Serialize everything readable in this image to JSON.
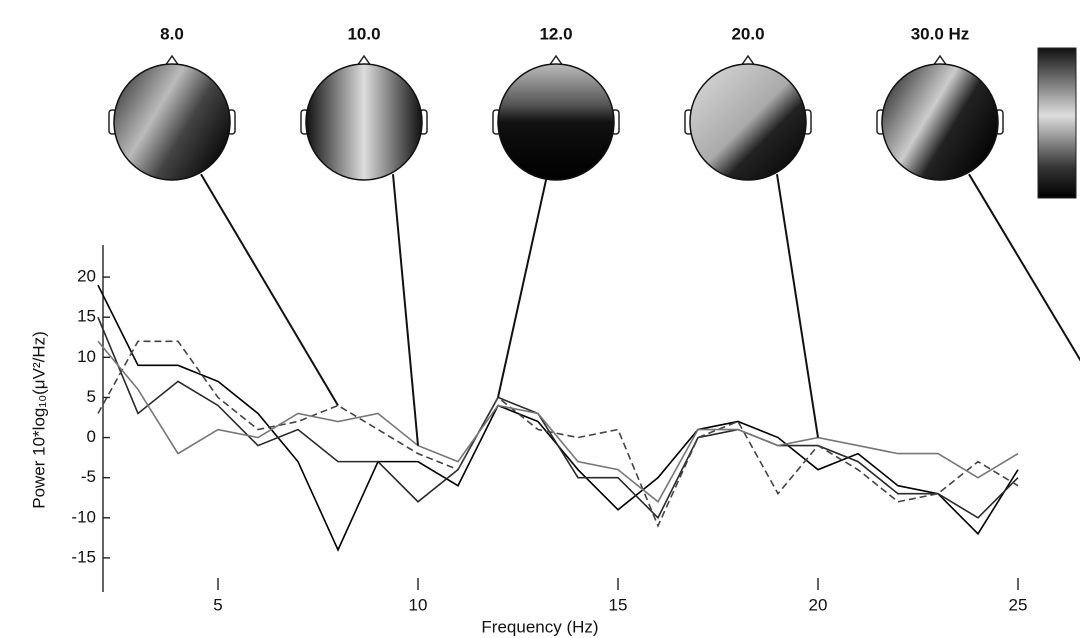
{
  "chart_data": {
    "type": "line",
    "x_label": "Frequency (Hz)",
    "y_label": "Power 10*log₁₀(μV²/Hz)",
    "x": [
      2,
      3,
      4,
      5,
      6,
      7,
      8,
      9,
      10,
      11,
      12,
      13,
      14,
      15,
      16,
      17,
      18,
      19,
      20,
      21,
      22,
      23,
      24,
      25
    ],
    "series": [
      {
        "color": "#000000",
        "style": "solid",
        "values": [
          19,
          9,
          9,
          7,
          3,
          -3,
          -14,
          -3,
          -3,
          -6,
          4,
          2,
          -4,
          -9,
          -5,
          1,
          2,
          0,
          -4,
          -2,
          -6,
          -7,
          -12,
          -4
        ]
      },
      {
        "color": "#2a2a2a",
        "style": "solid",
        "values": [
          15,
          3,
          7,
          4,
          -1,
          1,
          -3,
          -3,
          -8,
          -4,
          5,
          3,
          -5,
          -5,
          -10,
          0,
          1,
          -1,
          -1,
          -3,
          -7,
          -7,
          -10,
          -5
        ]
      },
      {
        "color": "#444444",
        "style": "dashed",
        "values": [
          3,
          12,
          12,
          5,
          1,
          2,
          4,
          1,
          -2,
          -4,
          5,
          1,
          0,
          1,
          -11,
          0,
          2,
          -7,
          -1,
          -4,
          -8,
          -7,
          -3,
          -6
        ]
      },
      {
        "color": "#777777",
        "style": "solid",
        "values": [
          12,
          6,
          -2,
          1,
          0,
          3,
          2,
          3,
          -1,
          -3,
          4,
          3,
          -3,
          -4,
          -8,
          1,
          1,
          -1,
          0,
          -1,
          -2,
          -2,
          -5,
          -2
        ]
      }
    ],
    "xlim": [
      2,
      25
    ],
    "xticks": [
      5,
      10,
      15,
      20,
      25
    ],
    "ylim": [
      -19,
      24
    ],
    "yticks": [
      -15,
      -10,
      -5,
      0,
      5,
      10,
      15,
      20
    ],
    "topomaps": [
      {
        "value": 8,
        "label": "8.0"
      },
      {
        "value": 10,
        "label": "10.0"
      },
      {
        "value": 12,
        "label": "12.0"
      },
      {
        "value": 20,
        "label": "20.0"
      },
      {
        "value": 30,
        "label": "30.0 Hz"
      }
    ]
  }
}
